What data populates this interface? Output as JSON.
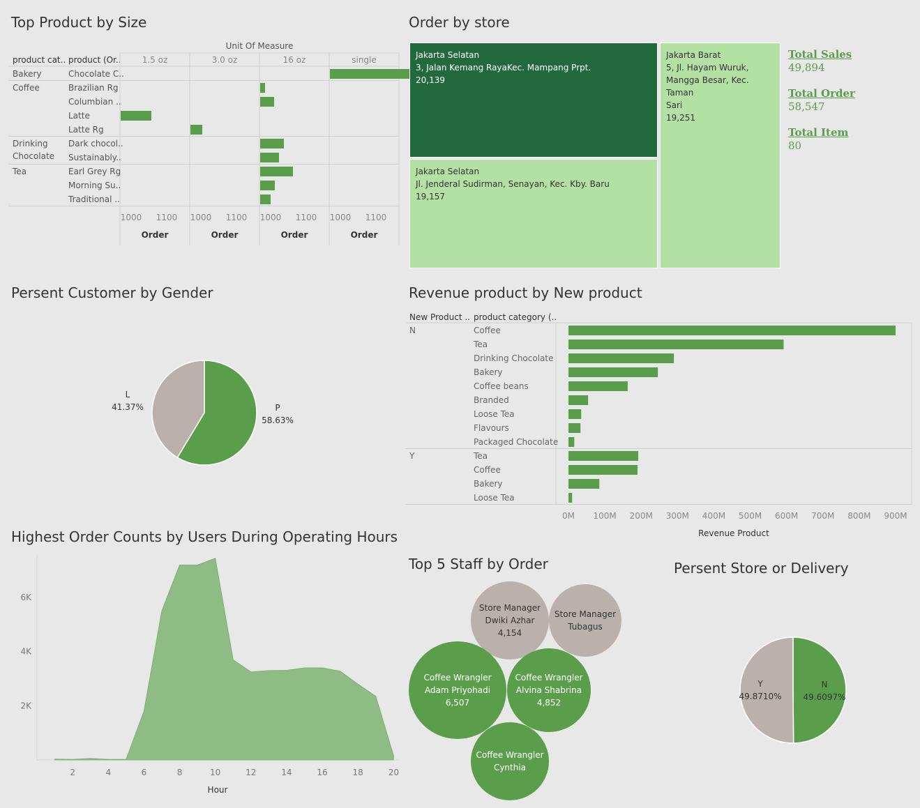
{
  "titles": {
    "size": "Top Product by Size",
    "store": "Order by store",
    "gender": "Persent Customer by Gender",
    "newprod": "Revenue product by New product",
    "hours": "Highest Order Counts by Users During Operating Hours",
    "staff": "Top 5 Staff by Order",
    "delivery": "Persent Store or  Delivery"
  },
  "colors": {
    "green": "#5a9e4b",
    "dark_green": "#23693e",
    "light_green": "#b3e0a3",
    "grey": "#bab0ac",
    "area": "#8fbb85"
  },
  "chart_data": [
    {
      "type": "bar",
      "id": "size",
      "column_group_label": "Unit Of Measure",
      "row_headers": [
        "product cat..",
        "product (Or.."
      ],
      "columns": [
        "1.5 oz",
        "3.0 oz",
        "16 oz",
        "single"
      ],
      "axis_ticks": [
        "1000",
        "1100"
      ],
      "xlabel": "Order",
      "groups": [
        {
          "category": "Bakery",
          "products": [
            {
              "name": "Chocolate C..",
              "unit": "single",
              "value": 1190
            }
          ]
        },
        {
          "category": "Coffee",
          "products": [
            {
              "name": "Brazilian Rg",
              "unit": "16 oz",
              "value": 1005
            },
            {
              "name": "Columbian ..",
              "unit": "16 oz",
              "value": 1018
            },
            {
              "name": "Latte",
              "unit": "1.5 oz",
              "value": 1042
            },
            {
              "name": "Latte Rg",
              "unit": "3.0 oz",
              "value": 1015
            }
          ]
        },
        {
          "category": "Drinking Chocolate",
          "products": [
            {
              "name": "Dark chocol..",
              "unit": "16 oz",
              "value": 1032
            },
            {
              "name": "Sustainably..",
              "unit": "16 oz",
              "value": 1025
            }
          ]
        },
        {
          "category": "Tea",
          "products": [
            {
              "name": "Earl Grey Rg",
              "unit": "16 oz",
              "value": 1045
            },
            {
              "name": "Morning Su..",
              "unit": "16 oz",
              "value": 1019
            },
            {
              "name": "Traditional ..",
              "unit": "16 oz",
              "value": 1013
            }
          ]
        }
      ]
    },
    {
      "type": "treemap",
      "id": "store",
      "items": [
        {
          "city": "Jakarta Selatan",
          "address": "3, Jalan Kemang RayaKec. Mampang Prpt.",
          "value": "20,139"
        },
        {
          "city": "Jakarta Selatan",
          "address": "Jl. Jenderal Sudirman, Senayan, Kec. Kby. Baru",
          "value": "19,157"
        },
        {
          "city": "Jakarta Barat",
          "address_lines": [
            "5, Jl. Hayam Wuruk,",
            "Mangga Besar, Kec. Taman",
            "Sari"
          ],
          "value": "19,251"
        }
      ]
    },
    {
      "type": "pie",
      "id": "gender",
      "slices": [
        {
          "label": "P",
          "pct": "58.63%",
          "value": 58.63
        },
        {
          "label": "L",
          "pct": "41.37%",
          "value": 41.37
        }
      ]
    },
    {
      "type": "bar",
      "id": "newprod",
      "row_headers": [
        "New Product ..",
        "product category (.."
      ],
      "xlabel": "Revenue Product",
      "ticks": [
        "0M",
        "100M",
        "200M",
        "300M",
        "400M",
        "500M",
        "600M",
        "700M",
        "800M",
        "900M"
      ],
      "xlim": [
        0,
        900
      ],
      "groups": [
        {
          "name": "N",
          "rows": [
            {
              "category": "Coffee",
              "value": 900
            },
            {
              "category": "Tea",
              "value": 592
            },
            {
              "category": "Drinking Chocolate",
              "value": 290
            },
            {
              "category": "Bakery",
              "value": 246
            },
            {
              "category": "Coffee beans",
              "value": 163
            },
            {
              "category": "Branded",
              "value": 54
            },
            {
              "category": "Loose Tea",
              "value": 35
            },
            {
              "category": "Flavours",
              "value": 33
            },
            {
              "category": "Packaged Chocolate",
              "value": 16
            }
          ]
        },
        {
          "name": "Y",
          "rows": [
            {
              "category": "Tea",
              "value": 192
            },
            {
              "category": "Coffee",
              "value": 190
            },
            {
              "category": "Bakery",
              "value": 85
            },
            {
              "category": "Loose Tea",
              "value": 10
            }
          ]
        }
      ]
    },
    {
      "type": "area",
      "id": "hours",
      "xlabel": "Hour",
      "xticks": [
        2,
        4,
        6,
        8,
        10,
        12,
        14,
        16,
        18,
        20
      ],
      "yticks": [
        "2K",
        "4K",
        "6K"
      ],
      "xlim": [
        0,
        20.3
      ],
      "ylim": [
        0,
        7600
      ],
      "x": [
        1,
        2,
        3,
        4,
        5,
        6,
        7,
        8,
        9,
        10,
        11,
        12,
        13,
        14,
        15,
        16,
        17,
        18,
        19,
        20
      ],
      "values": [
        30,
        20,
        50,
        20,
        20,
        1800,
        5500,
        7200,
        7200,
        7450,
        3700,
        3250,
        3300,
        3310,
        3400,
        3400,
        3280,
        2800,
        2350,
        150
      ]
    },
    {
      "type": "bubble",
      "id": "staff",
      "items": [
        {
          "lines": [
            "Store Manager",
            "Dwiki Azhar",
            "4,154"
          ],
          "color": "grey"
        },
        {
          "lines": [
            "Store Manager",
            "Tubagus"
          ],
          "color": "grey"
        },
        {
          "lines": [
            "Coffee Wrangler",
            "Adam Priyohadi",
            "6,507"
          ],
          "color": "green"
        },
        {
          "lines": [
            "Coffee Wrangler",
            "Alvina Shabrina",
            "4,852"
          ],
          "color": "green"
        },
        {
          "lines": [
            "Coffee Wrangler",
            "Cynthia"
          ],
          "color": "green"
        }
      ]
    },
    {
      "type": "pie",
      "id": "delivery",
      "slices": [
        {
          "label": "N",
          "pct": "49.6097%",
          "value": 49.6097
        },
        {
          "label": "Y",
          "pct": "49.8710%",
          "value": 49.871
        }
      ]
    }
  ],
  "kpis": [
    {
      "label": "Total Sales",
      "value": "49,894"
    },
    {
      "label": "Total Order",
      "value": "58,547"
    },
    {
      "label": "Total Item",
      "value": "80"
    }
  ]
}
